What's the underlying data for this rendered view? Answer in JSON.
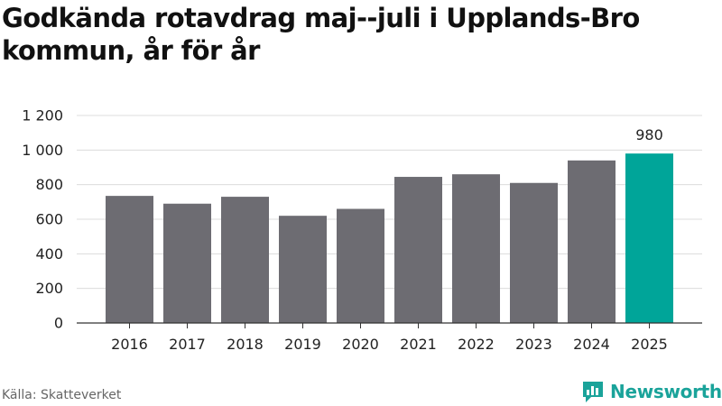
{
  "title": {
    "line1": "Godkända rotavdrag maj--juli i Upplands-Bro",
    "line2": "kommun, år för år"
  },
  "source": "Källa: Skatteverket",
  "brand": {
    "name": "Newsworthy",
    "icon": "newsworthy-logo-icon",
    "color": "#1aa39a"
  },
  "colors": {
    "bar": "#6d6c72",
    "highlight": "#00a599",
    "grid": "#dcdcdc",
    "axis": "#333333"
  },
  "chart_data": {
    "type": "bar",
    "categories": [
      "2016",
      "2017",
      "2018",
      "2019",
      "2020",
      "2021",
      "2022",
      "2023",
      "2024",
      "2025"
    ],
    "values": [
      735,
      690,
      730,
      620,
      660,
      845,
      860,
      810,
      940,
      980
    ],
    "highlight_index": 9,
    "data_labels": [
      {
        "index": 9,
        "text": "980"
      }
    ],
    "yticks": [
      0,
      200,
      400,
      600,
      800,
      1000,
      1200
    ],
    "ytick_labels": [
      "0",
      "200",
      "400",
      "600",
      "800",
      "1 000",
      "1 200"
    ],
    "ylim": [
      0,
      1200
    ],
    "grid": true,
    "xlabel": "",
    "ylabel": ""
  }
}
